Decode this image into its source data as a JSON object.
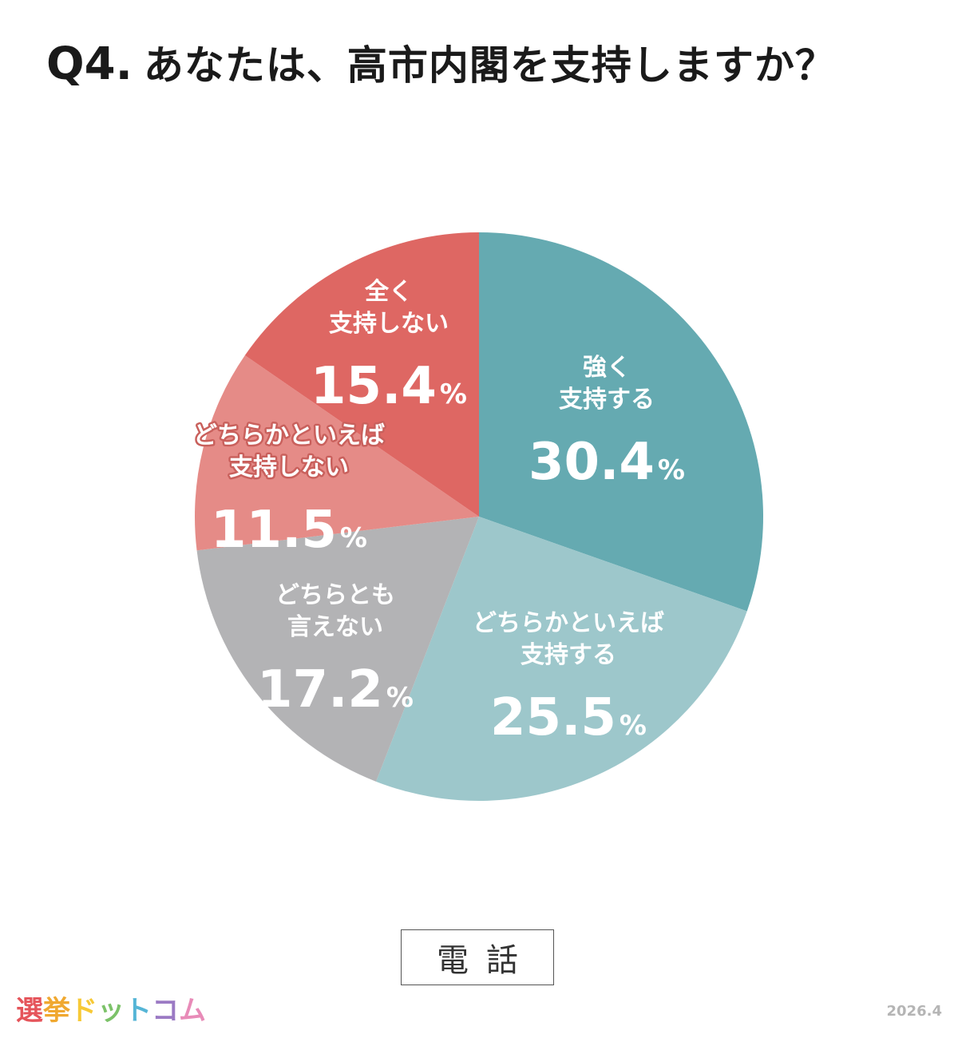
{
  "title": {
    "number": "Q4.",
    "question": "あなたは、高市内閣を支持しますか？"
  },
  "chart_data": {
    "type": "pie",
    "start_angle_deg": 0,
    "direction": "clockwise",
    "slices": [
      {
        "label_lines": [
          "強く",
          "支持する"
        ],
        "value": 30.4,
        "display": "30.4",
        "color": "#65aab1"
      },
      {
        "label_lines": [
          "どちらかといえば",
          "支持する"
        ],
        "value": 25.5,
        "display": "25.5",
        "color": "#9dc7cb"
      },
      {
        "label_lines": [
          "どちらとも",
          "言えない"
        ],
        "value": 17.2,
        "display": "17.2",
        "color": "#b3b3b5"
      },
      {
        "label_lines": [
          "どちらかといえば",
          "支持しない"
        ],
        "value": 11.5,
        "display": "11.5",
        "color": "#e58b87"
      },
      {
        "label_lines": [
          "全く",
          "支持しない"
        ],
        "value": 15.4,
        "display": "15.4",
        "color": "#de6763"
      }
    ],
    "unit": "%"
  },
  "survey_mode": "電話",
  "logo": {
    "chars": [
      "選",
      "挙",
      "ド",
      "ッ",
      "ト",
      "コ",
      "ム"
    ],
    "colors": [
      "#e5545a",
      "#f0a830",
      "#f7c936",
      "#7cc269",
      "#55b5d6",
      "#9b7ac4",
      "#e88bb8"
    ]
  },
  "date": "2026.4"
}
